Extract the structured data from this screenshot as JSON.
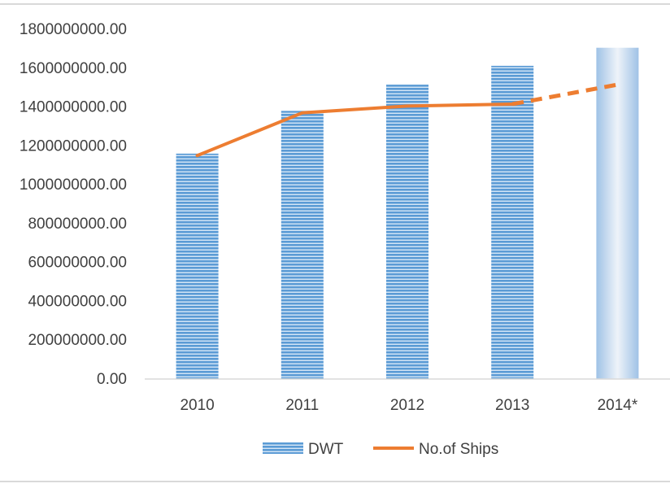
{
  "chart_data": {
    "type": "bar",
    "categories": [
      "2010",
      "2011",
      "2012",
      "2013",
      "2014*"
    ],
    "y_ticks": [
      "0.00",
      "200000000.00",
      "400000000.00",
      "600000000.00",
      "800000000.00",
      "1000000000.00",
      "1200000000.00",
      "1400000000.00",
      "1600000000.00",
      "1800000000.00"
    ],
    "ylim": [
      0,
      1800000000
    ],
    "grid": false,
    "legend_position": "bottom",
    "series": [
      {
        "name": "DWT",
        "kind": "bar",
        "color": "#5B9BD5",
        "values": [
          1160000000,
          1380000000,
          1515000000,
          1612000000,
          1705000000
        ]
      },
      {
        "name": "No.of Ships",
        "kind": "line",
        "color": "#ED7D31",
        "values": [
          1150000000,
          1370000000,
          1405000000,
          1415000000,
          1515000000
        ],
        "dashed_last_segment": true
      }
    ]
  }
}
